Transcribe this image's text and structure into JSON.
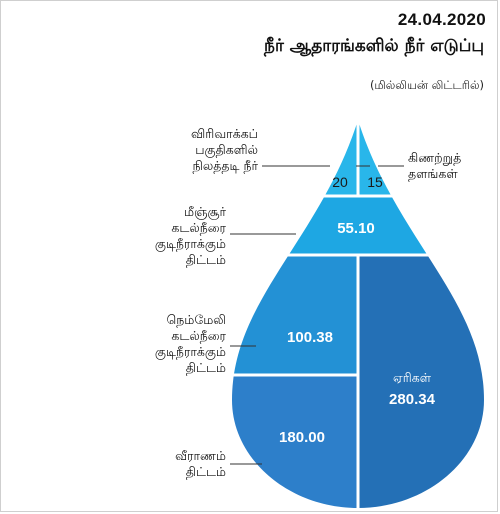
{
  "date": "24.04.2020",
  "title": "நீர் ஆதாரங்களில் நீர் எடுப்பு",
  "unit": "(மில்லியன் லிட்டரில்)",
  "chart_data": {
    "type": "area",
    "title": "நீர் ஆதாரங்களில் நீர் எடுப்பு",
    "unit": "(மில்லியன் லிட்டரில்)",
    "segments": [
      {
        "name": "விரிவாக்கப் பகுதிகளில் நிலத்தடி நீர்",
        "value": 20,
        "label": "20",
        "color": "#29b6ea"
      },
      {
        "name": "கிணற்றுத் தளங்கள்",
        "value": 15,
        "label": "15",
        "color": "#29b6ea"
      },
      {
        "name": "மீஞ்சூர் கடல்நீரை குடிநீராக்கும் திட்டம்",
        "value": 55.1,
        "label": "55.10",
        "color": "#1ea7e3"
      },
      {
        "name": "நெம்மேலி கடல்நீரை குடிநீராக்கும் திட்டம்",
        "value": 100.38,
        "label": "100.38",
        "color": "#2391d5"
      },
      {
        "name": "வீராணம் திட்டம்",
        "value": 180.0,
        "label": "180.00",
        "color": "#2d7fca"
      },
      {
        "name": "ஏரிகள்",
        "value": 280.34,
        "label": "280.34",
        "color": "#2470b6"
      }
    ]
  },
  "labels": {
    "groundwater": [
      "விரிவாக்கப்",
      "பகுதிகளில்",
      "நிலத்தடி நீர்"
    ],
    "wells": [
      "கிணற்றுத்",
      "தளங்கள்"
    ],
    "minjur": [
      "மீஞ்சூர்",
      "கடல்நீரை",
      "குடிநீராக்கும்",
      "திட்டம்"
    ],
    "nemmeli": [
      "நெம்மேலி",
      "கடல்நீரை",
      "குடிநீராக்கும்",
      "திட்டம்"
    ],
    "veeranam": [
      "வீராணம்",
      "திட்டம்"
    ],
    "lakes": "ஏரிகள்"
  }
}
